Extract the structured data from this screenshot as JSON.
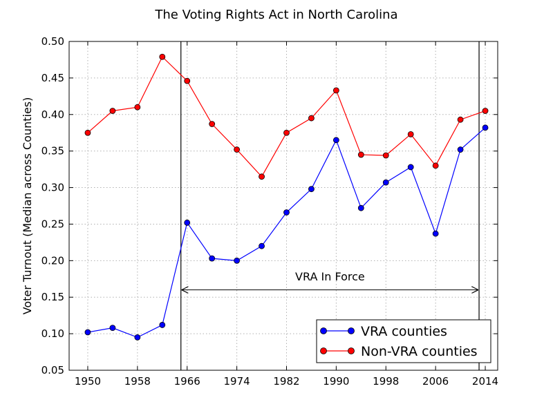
{
  "chart_data": {
    "type": "line",
    "title": "The Voting Rights Act in North Carolina",
    "xlabel": "",
    "ylabel": "Voter Turnout (Median across Counties)",
    "x": [
      1950,
      1954,
      1958,
      1962,
      1966,
      1970,
      1974,
      1978,
      1982,
      1986,
      1990,
      1994,
      1998,
      2002,
      2006,
      2010,
      2014
    ],
    "xlim": [
      1947,
      2016
    ],
    "ylim": [
      0.05,
      0.5
    ],
    "xticks": [
      1950,
      1958,
      1966,
      1974,
      1982,
      1990,
      1998,
      2006,
      2014
    ],
    "yticks": [
      0.05,
      0.1,
      0.15,
      0.2,
      0.25,
      0.3,
      0.35,
      0.4,
      0.45,
      0.5
    ],
    "yticks_text": [
      "0.05",
      "0.10",
      "0.15",
      "0.20",
      "0.25",
      "0.30",
      "0.35",
      "0.40",
      "0.45",
      "0.50"
    ],
    "grid": true,
    "legend_position": "bottom-right",
    "series": [
      {
        "name": "VRA counties",
        "color": "#0000ff",
        "values": [
          0.102,
          0.108,
          0.095,
          0.112,
          0.252,
          0.203,
          0.2,
          0.22,
          0.266,
          0.298,
          0.365,
          0.272,
          0.307,
          0.328,
          0.237,
          0.352,
          0.382
        ]
      },
      {
        "name": "Non-VRA counties",
        "color": "#ff0000",
        "values": [
          0.375,
          0.405,
          0.41,
          0.479,
          0.446,
          0.387,
          0.352,
          0.315,
          0.375,
          0.395,
          0.433,
          0.345,
          0.344,
          0.373,
          0.33,
          0.393,
          0.405
        ]
      }
    ],
    "vlines": [
      1965,
      2013
    ],
    "annotation": {
      "text": "VRA In Force",
      "x_start": 1965,
      "x_end": 2013,
      "y": 0.16,
      "text_x": 1989,
      "text_y": 0.175
    }
  }
}
